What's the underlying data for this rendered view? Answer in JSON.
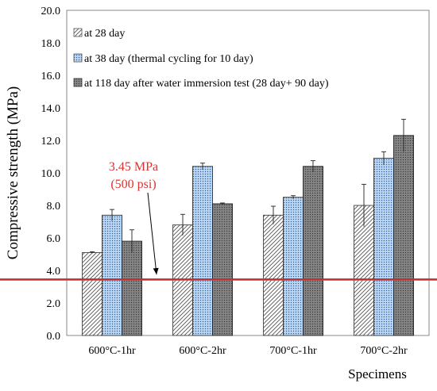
{
  "chart_data": {
    "type": "bar",
    "xlabel": "Specimens",
    "ylabel": "Compressive strength (MPa)",
    "ylim": [
      0,
      20
    ],
    "y_ticks": [
      "0.0",
      "2.0",
      "4.0",
      "6.0",
      "8.0",
      "10.0",
      "12.0",
      "14.0",
      "16.0",
      "18.0",
      "20.0"
    ],
    "categories": [
      "600°C-1hr",
      "600°C-2hr",
      "700°C-1hr",
      "700°C-2hr"
    ],
    "series": [
      {
        "name": "at 28 day",
        "values": [
          5.1,
          6.8,
          7.4,
          8.0
        ],
        "errors": [
          0.05,
          0.65,
          0.55,
          1.3
        ],
        "pattern": "diagonal-hatch"
      },
      {
        "name": "at 38 day (thermal cycling for 10 day)",
        "values": [
          7.4,
          10.4,
          8.5,
          10.9
        ],
        "errors": [
          0.35,
          0.2,
          0.1,
          0.4
        ],
        "pattern": "blue-dots"
      },
      {
        "name": "at 118 day after water immersion test (28 day+ 90 day)",
        "values": [
          5.8,
          8.1,
          10.4,
          12.3
        ],
        "errors": [
          0.7,
          0.05,
          0.35,
          1.0
        ],
        "pattern": "dark-gray-dots"
      }
    ],
    "reference_line": {
      "value": 3.45,
      "color": "#c0302e"
    },
    "annotation": {
      "line1": "3.45 MPa",
      "line2": "(500 psi)",
      "color": "#e0302e"
    },
    "grid": false,
    "legend_position": "top-left"
  }
}
